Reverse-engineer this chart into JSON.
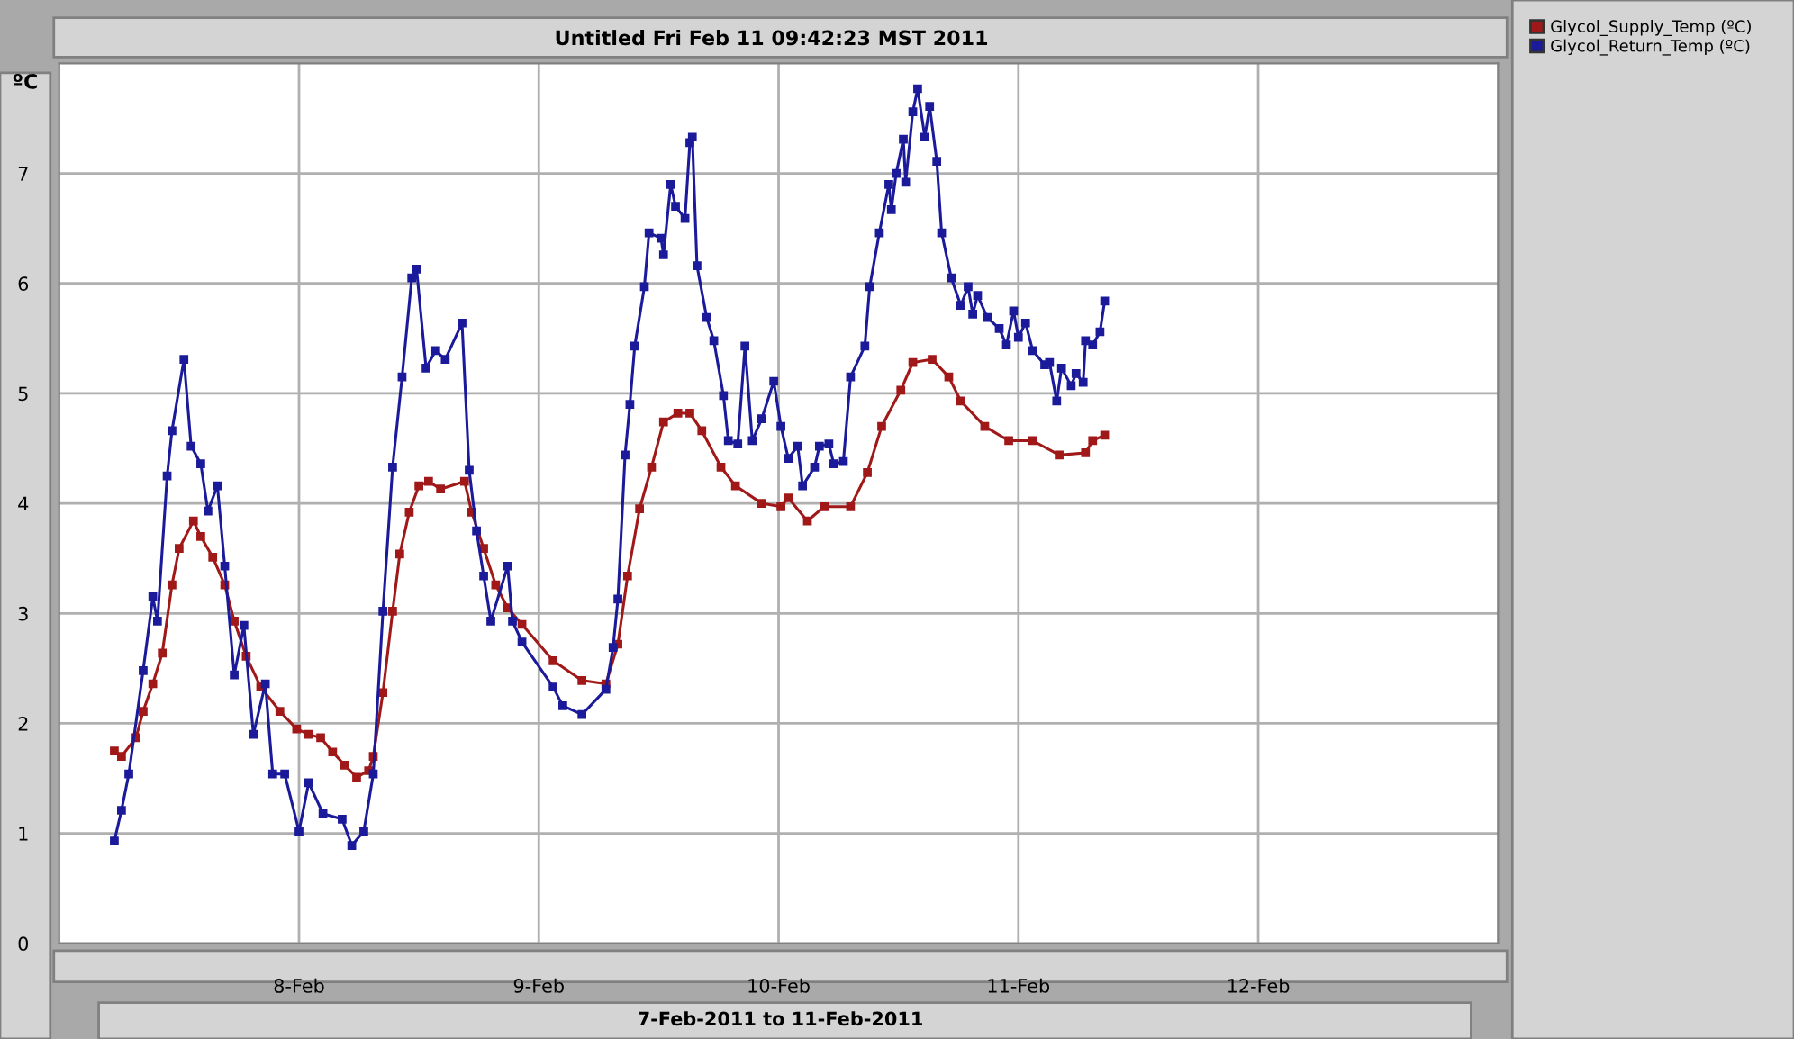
{
  "chart_data": {
    "type": "line",
    "title": "Untitled Fri Feb 11 09:42:23 MST 2011",
    "ylabel": "ºC",
    "annotations": [
      "7-Feb-2011 to 11-Feb-2011"
    ],
    "xlim": [
      "2011-02-07",
      "2011-02-13"
    ],
    "xticks": [
      {
        "value": "2011-02-08",
        "label": "8-Feb"
      },
      {
        "value": "2011-02-09",
        "label": "9-Feb"
      },
      {
        "value": "2011-02-10",
        "label": "10-Feb"
      },
      {
        "value": "2011-02-11",
        "label": "11-Feb"
      },
      {
        "value": "2011-02-12",
        "label": "12-Feb"
      }
    ],
    "ylim": [
      0,
      8
    ],
    "yticks": [
      0,
      1,
      2,
      3,
      4,
      5,
      6,
      7
    ],
    "grid": true,
    "legend": "right",
    "marker": "square",
    "line_style": "solid",
    "series": [
      {
        "name": "Glycol_Supply_Temp (ºC)",
        "color": "#a01818",
        "x": [
          "2011-02-07T05:31",
          "2011-02-07T06:14",
          "2011-02-07T07:41",
          "2011-02-07T08:24",
          "2011-02-07T09:22",
          "2011-02-07T10:19",
          "2011-02-07T11:17",
          "2011-02-07T12:00",
          "2011-02-07T13:26",
          "2011-02-07T14:10",
          "2011-02-07T15:22",
          "2011-02-07T16:34",
          "2011-02-07T17:31",
          "2011-02-07T18:43",
          "2011-02-07T20:10",
          "2011-02-07T22:05",
          "2011-02-07T23:46",
          "2011-02-08T00:58",
          "2011-02-08T02:10",
          "2011-02-08T03:22",
          "2011-02-08T04:34",
          "2011-02-08T05:46",
          "2011-02-08T06:58",
          "2011-02-08T07:26",
          "2011-02-08T08:24",
          "2011-02-08T09:22",
          "2011-02-08T10:05",
          "2011-02-08T11:02",
          "2011-02-08T12:00",
          "2011-02-08T12:58",
          "2011-02-08T14:10",
          "2011-02-08T16:34",
          "2011-02-08T17:17",
          "2011-02-08T18:29",
          "2011-02-08T19:41",
          "2011-02-08T20:53",
          "2011-02-08T22:19",
          "2011-02-09T01:26",
          "2011-02-09T04:19",
          "2011-02-09T06:43",
          "2011-02-09T07:55",
          "2011-02-09T08:53",
          "2011-02-09T10:05",
          "2011-02-09T11:17",
          "2011-02-09T12:29",
          "2011-02-09T13:55",
          "2011-02-09T15:07",
          "2011-02-09T16:19",
          "2011-02-09T18:14",
          "2011-02-09T19:41",
          "2011-02-09T22:19",
          "2011-02-10T00:14",
          "2011-02-10T00:58",
          "2011-02-10T02:53",
          "2011-02-10T04:34",
          "2011-02-10T07:12",
          "2011-02-10T08:53",
          "2011-02-10T10:19",
          "2011-02-10T12:14",
          "2011-02-10T13:26",
          "2011-02-10T15:22",
          "2011-02-10T17:02",
          "2011-02-10T18:14",
          "2011-02-10T20:38",
          "2011-02-10T23:02",
          "2011-02-11T01:26",
          "2011-02-11T04:05",
          "2011-02-11T06:43",
          "2011-02-11T07:26",
          "2011-02-11T08:38"
        ],
        "values": [
          1.75,
          1.7,
          1.87,
          2.11,
          2.36,
          2.64,
          3.26,
          3.59,
          3.84,
          3.7,
          3.51,
          3.26,
          2.93,
          2.61,
          2.33,
          2.11,
          1.95,
          1.9,
          1.87,
          1.74,
          1.62,
          1.51,
          1.57,
          1.7,
          2.28,
          3.02,
          3.54,
          3.92,
          4.16,
          4.2,
          4.13,
          4.2,
          3.92,
          3.59,
          3.26,
          3.05,
          2.9,
          2.57,
          2.39,
          2.36,
          2.72,
          3.34,
          3.95,
          4.33,
          4.74,
          4.82,
          4.82,
          4.66,
          4.33,
          4.16,
          4.0,
          3.97,
          4.05,
          3.84,
          3.97,
          3.97,
          4.28,
          4.7,
          5.03,
          5.28,
          5.31,
          5.15,
          4.93,
          4.7,
          4.57,
          4.57,
          4.44,
          4.46,
          4.57,
          4.62
        ]
      },
      {
        "name": "Glycol_Return_Temp (ºC)",
        "color": "#1a1a9a",
        "x": [
          "2011-02-07T05:31",
          "2011-02-07T06:14",
          "2011-02-07T06:58",
          "2011-02-07T08:24",
          "2011-02-07T09:22",
          "2011-02-07T09:50",
          "2011-02-07T10:48",
          "2011-02-07T11:17",
          "2011-02-07T12:29",
          "2011-02-07T13:12",
          "2011-02-07T14:10",
          "2011-02-07T14:53",
          "2011-02-07T15:50",
          "2011-02-07T16:34",
          "2011-02-07T17:31",
          "2011-02-07T18:29",
          "2011-02-07T19:26",
          "2011-02-07T20:38",
          "2011-02-07T21:22",
          "2011-02-07T22:34",
          "2011-02-08T00:00",
          "2011-02-08T00:58",
          "2011-02-08T02:24",
          "2011-02-08T04:19",
          "2011-02-08T05:17",
          "2011-02-08T06:29",
          "2011-02-08T07:26",
          "2011-02-08T08:24",
          "2011-02-08T09:22",
          "2011-02-08T10:19",
          "2011-02-08T11:17",
          "2011-02-08T11:46",
          "2011-02-08T12:43",
          "2011-02-08T13:41",
          "2011-02-08T14:38",
          "2011-02-08T16:19",
          "2011-02-08T17:02",
          "2011-02-08T17:46",
          "2011-02-08T18:29",
          "2011-02-08T19:12",
          "2011-02-08T20:53",
          "2011-02-08T21:22",
          "2011-02-08T22:19",
          "2011-02-09T01:26",
          "2011-02-09T02:24",
          "2011-02-09T04:19",
          "2011-02-09T06:43",
          "2011-02-09T07:26",
          "2011-02-09T07:55",
          "2011-02-09T08:38",
          "2011-02-09T09:07",
          "2011-02-09T09:36",
          "2011-02-09T10:34",
          "2011-02-09T11:02",
          "2011-02-09T12:14",
          "2011-02-09T12:29",
          "2011-02-09T13:12",
          "2011-02-09T13:41",
          "2011-02-09T14:38",
          "2011-02-09T15:07",
          "2011-02-09T15:22",
          "2011-02-09T15:50",
          "2011-02-09T16:48",
          "2011-02-09T17:31",
          "2011-02-09T18:29",
          "2011-02-09T18:58",
          "2011-02-09T19:55",
          "2011-02-09T20:38",
          "2011-02-09T21:22",
          "2011-02-09T22:19",
          "2011-02-09T23:31",
          "2011-02-10T00:14",
          "2011-02-10T00:58",
          "2011-02-10T01:55",
          "2011-02-10T02:24",
          "2011-02-10T03:36",
          "2011-02-10T04:05",
          "2011-02-10T05:02",
          "2011-02-10T05:31",
          "2011-02-10T06:29",
          "2011-02-10T07:12",
          "2011-02-10T08:38",
          "2011-02-10T09:07",
          "2011-02-10T10:05",
          "2011-02-10T11:02",
          "2011-02-10T11:17",
          "2011-02-10T11:46",
          "2011-02-10T12:29",
          "2011-02-10T12:43",
          "2011-02-10T13:26",
          "2011-02-10T13:55",
          "2011-02-10T14:38",
          "2011-02-10T15:07",
          "2011-02-10T15:50",
          "2011-02-10T16:19",
          "2011-02-10T17:17",
          "2011-02-10T18:14",
          "2011-02-10T18:58",
          "2011-02-10T19:26",
          "2011-02-10T19:55",
          "2011-02-10T20:53",
          "2011-02-10T22:05",
          "2011-02-10T22:48",
          "2011-02-10T23:31",
          "2011-02-11T00:00",
          "2011-02-11T00:43",
          "2011-02-11T01:26",
          "2011-02-11T02:38",
          "2011-02-11T03:07",
          "2011-02-11T03:50",
          "2011-02-11T04:19",
          "2011-02-11T05:17",
          "2011-02-11T05:46",
          "2011-02-11T06:29",
          "2011-02-11T06:43",
          "2011-02-11T07:26",
          "2011-02-11T08:10",
          "2011-02-11T08:38"
        ],
        "values": [
          0.93,
          1.21,
          1.54,
          2.48,
          3.15,
          2.93,
          4.25,
          4.66,
          5.31,
          4.52,
          4.36,
          3.93,
          4.16,
          3.43,
          2.44,
          2.89,
          1.9,
          2.36,
          1.54,
          1.54,
          1.02,
          1.46,
          1.18,
          1.13,
          0.89,
          1.02,
          1.54,
          3.02,
          4.33,
          5.15,
          6.05,
          6.13,
          5.23,
          5.39,
          5.31,
          5.64,
          4.3,
          3.75,
          3.34,
          2.93,
          3.43,
          2.93,
          2.74,
          2.33,
          2.16,
          2.08,
          2.31,
          2.69,
          3.13,
          4.44,
          4.9,
          5.43,
          5.97,
          6.46,
          6.41,
          6.26,
          6.9,
          6.7,
          6.59,
          7.28,
          7.33,
          6.16,
          5.69,
          5.48,
          4.98,
          4.57,
          4.54,
          5.43,
          4.57,
          4.77,
          5.11,
          4.7,
          4.41,
          4.52,
          4.16,
          4.33,
          4.52,
          4.54,
          4.36,
          4.38,
          5.15,
          5.43,
          5.97,
          6.46,
          6.9,
          6.67,
          7.0,
          7.31,
          6.92,
          7.56,
          7.77,
          7.33,
          7.61,
          7.11,
          6.46,
          6.05,
          5.8,
          5.97,
          5.72,
          5.89,
          5.69,
          5.59,
          5.44,
          5.75,
          5.51,
          5.64,
          5.39,
          5.26,
          5.28,
          4.93,
          5.23,
          5.07,
          5.18,
          5.1,
          5.48,
          5.44,
          5.56,
          5.84
        ]
      }
    ]
  }
}
